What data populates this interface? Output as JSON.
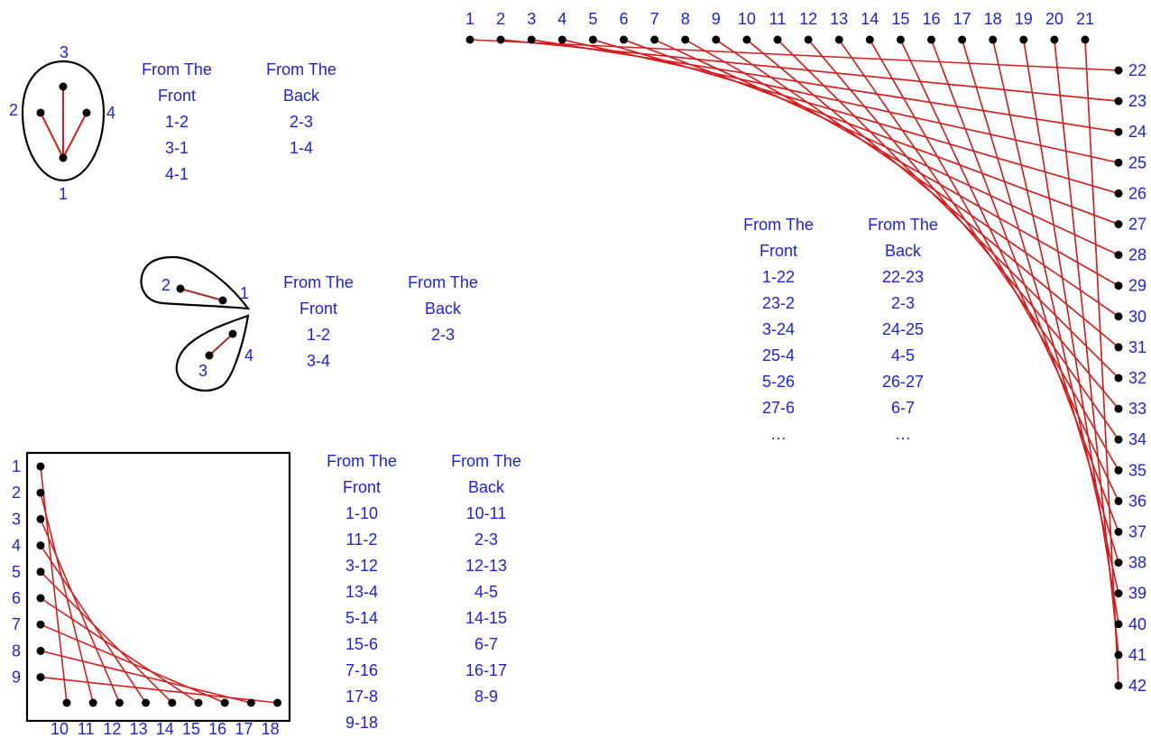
{
  "colors": {
    "label": "#1f1fe0",
    "thread": "#d41f1f",
    "thread_dark": "#a52a2a",
    "outline": "#000000",
    "pin": "#000000"
  },
  "headers": {
    "front_1": "From The",
    "front_2": "Front",
    "back_1": "From The",
    "back_2": "Back"
  },
  "fig_teardrop": {
    "pin_labels": [
      "1",
      "2",
      "3",
      "4"
    ],
    "front": [
      "1-2",
      "3-1",
      "4-1"
    ],
    "back": [
      "2-3",
      "1-4"
    ]
  },
  "fig_petals": {
    "pin_labels": [
      "1",
      "2",
      "3",
      "4"
    ],
    "front": [
      "1-2",
      "3-4"
    ],
    "back": [
      "2-3"
    ]
  },
  "fig_square": {
    "left_labels": [
      "1",
      "2",
      "3",
      "4",
      "5",
      "6",
      "7",
      "8",
      "9"
    ],
    "bottom_labels": [
      "10",
      "11",
      "12",
      "13",
      "14",
      "15",
      "16",
      "17",
      "18"
    ],
    "front": [
      "1-10",
      "11-2",
      "3-12",
      "13-4",
      "5-14",
      "15-6",
      "7-16",
      "17-8",
      "9-18"
    ],
    "back": [
      "10-11",
      "2-3",
      "12-13",
      "4-5",
      "14-15",
      "6-7",
      "16-17",
      "8-9"
    ]
  },
  "fig_curve": {
    "top_labels": [
      "1",
      "2",
      "3",
      "4",
      "5",
      "6",
      "7",
      "8",
      "9",
      "10",
      "11",
      "12",
      "13",
      "14",
      "15",
      "16",
      "17",
      "18",
      "19",
      "20",
      "21"
    ],
    "right_labels": [
      "22",
      "23",
      "24",
      "25",
      "26",
      "27",
      "28",
      "29",
      "30",
      "31",
      "32",
      "33",
      "34",
      "35",
      "36",
      "37",
      "38",
      "39",
      "40",
      "41",
      "42"
    ],
    "front": [
      "1-22",
      "23-2",
      "3-24",
      "25-4",
      "5-26",
      "27-6",
      "…"
    ],
    "back": [
      "22-23",
      "2-3",
      "24-25",
      "4-5",
      "26-27",
      "6-7",
      "…"
    ]
  }
}
